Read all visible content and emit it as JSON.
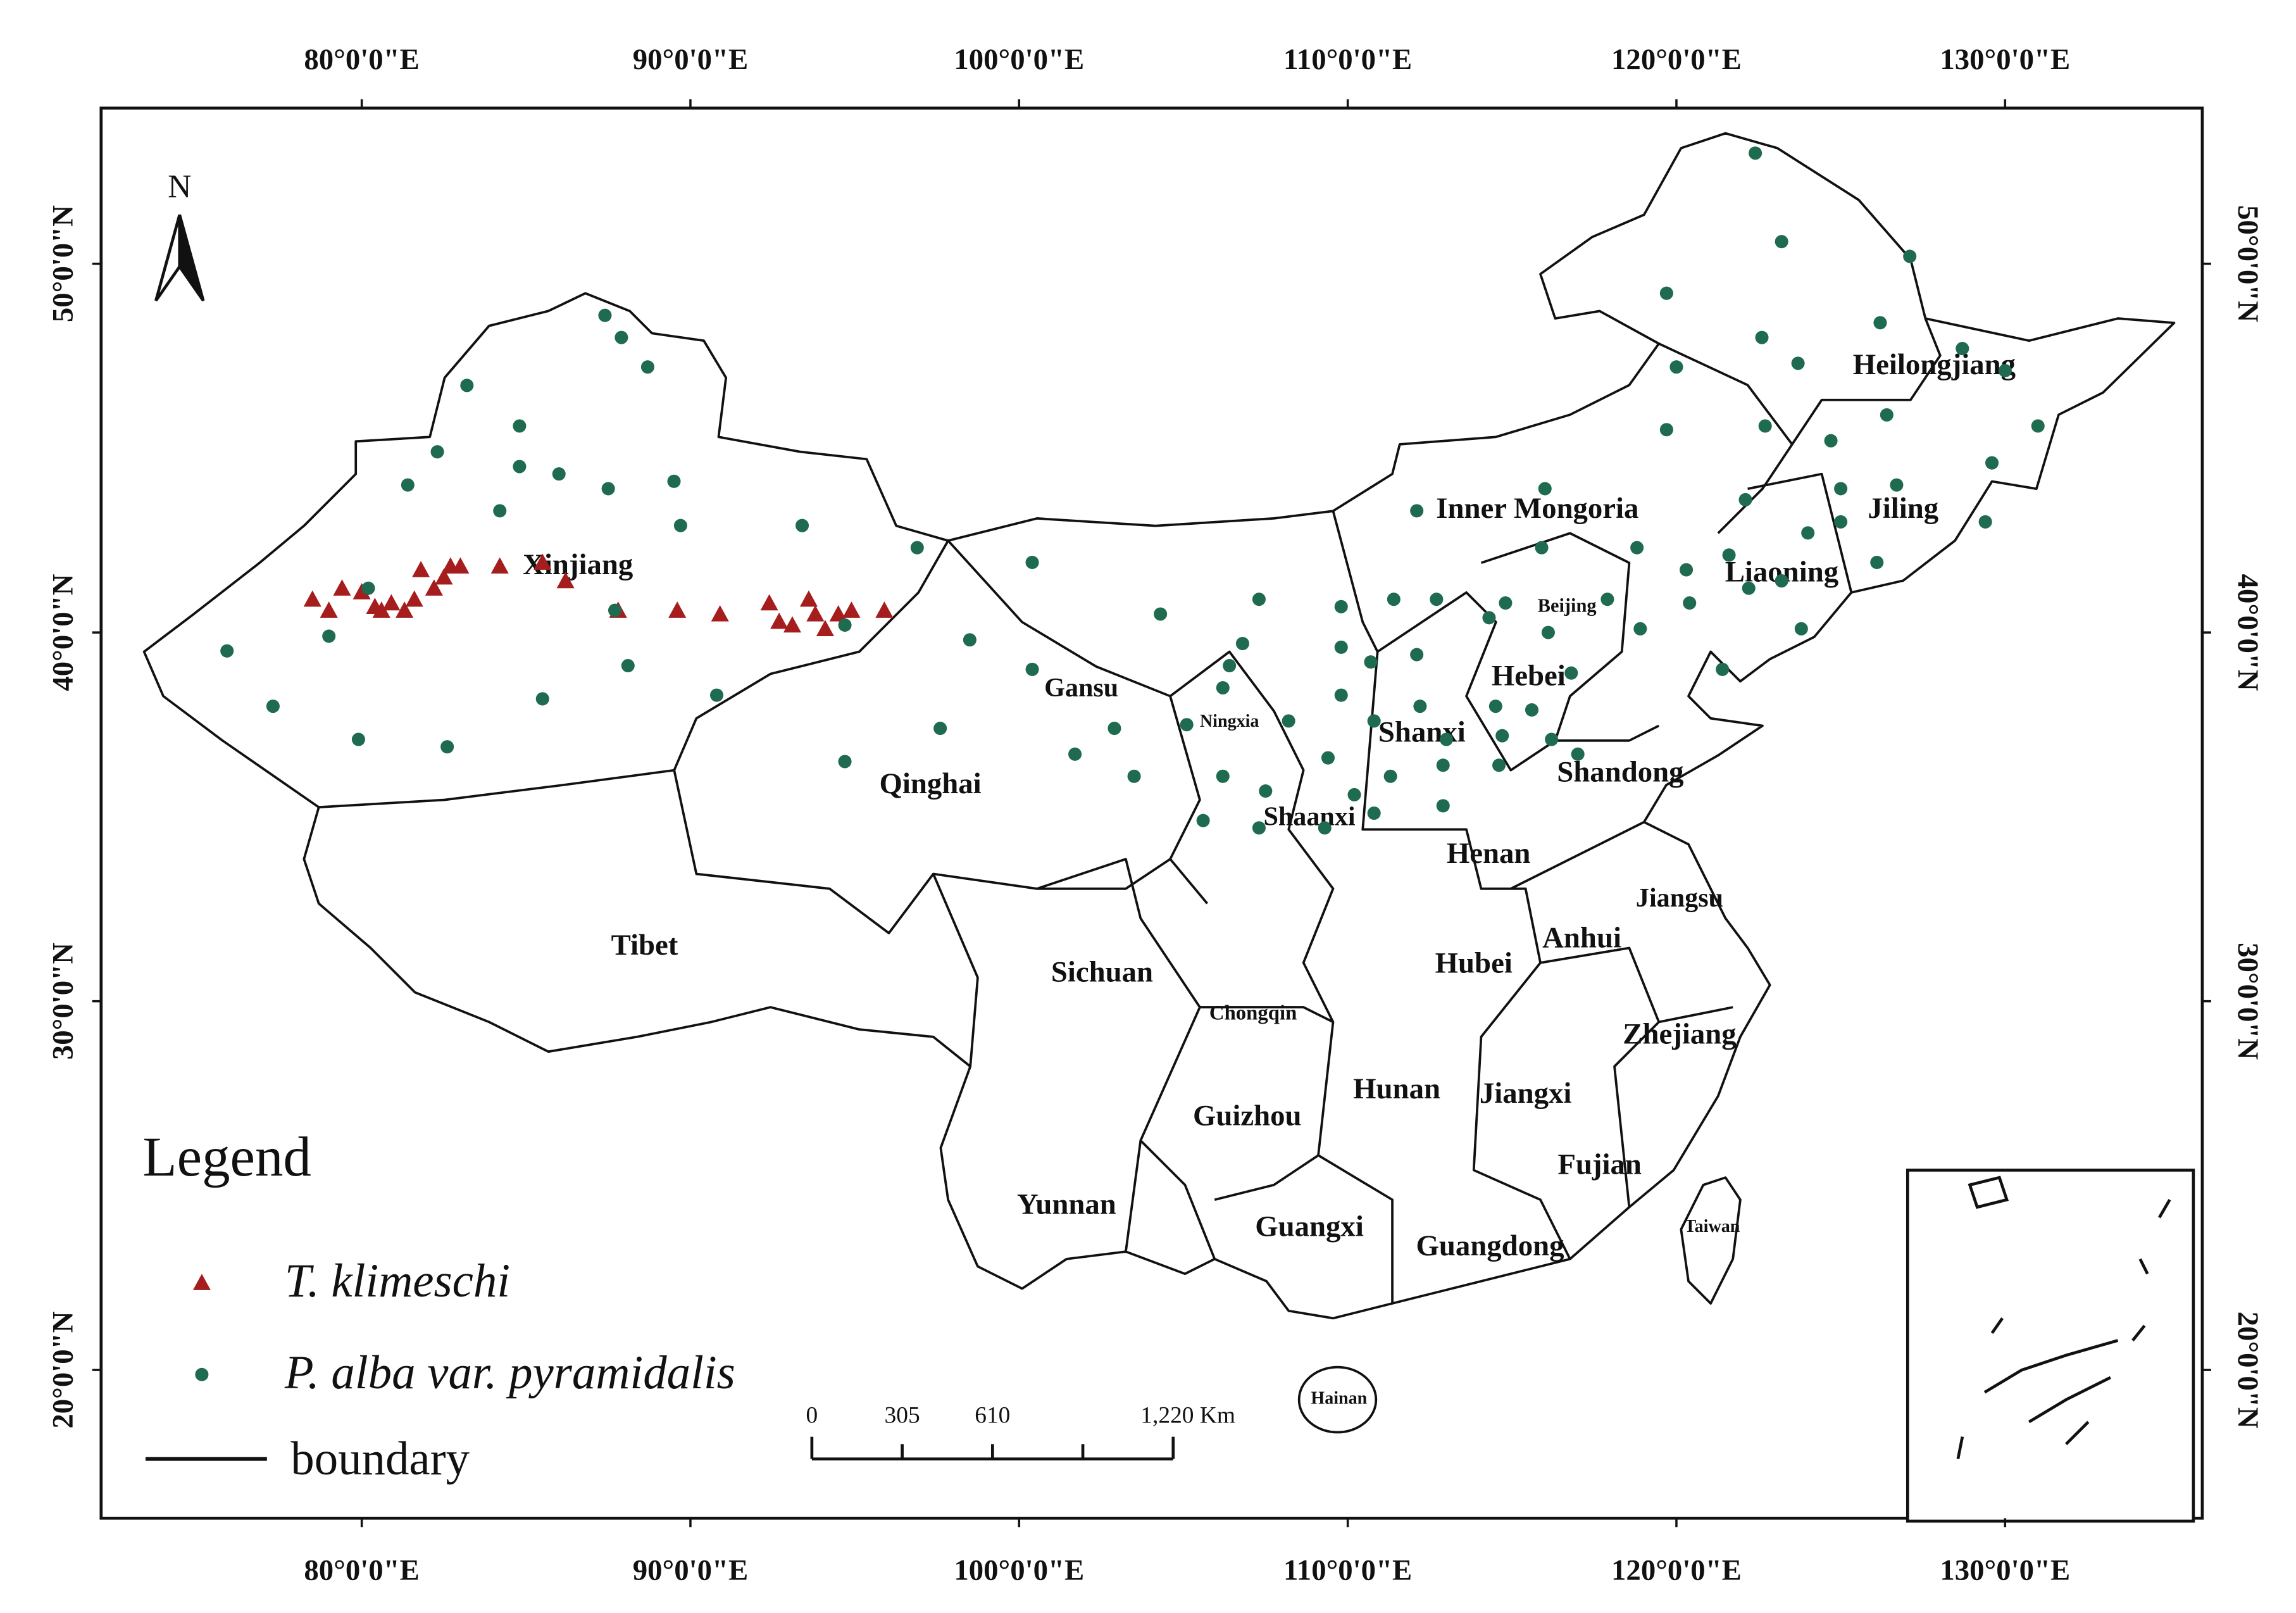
{
  "map": {
    "north": "N",
    "xlim": [
      72.07,
      136.0
    ],
    "ylim": [
      15.98,
      54.22
    ],
    "lon_ticks": [
      {
        "value": 80,
        "label": "80°0'0\"E"
      },
      {
        "value": 90,
        "label": "90°0'0\"E"
      },
      {
        "value": 100,
        "label": "100°0'0\"E"
      },
      {
        "value": 110,
        "label": "110°0'0\"E"
      },
      {
        "value": 120,
        "label": "120°0'0\"E"
      },
      {
        "value": 130,
        "label": "130°0'0\"E"
      }
    ],
    "lat_ticks": [
      {
        "value": 50,
        "label": "50°0'0\"N"
      },
      {
        "value": 40,
        "label": "40°0'0\"N"
      },
      {
        "value": 30,
        "label": "30°0'0\"N"
      },
      {
        "value": 20,
        "label": "20°0'0\"N"
      }
    ],
    "regions": [
      "Xinjiang",
      "Tibet",
      "Qinghai",
      "Gansu",
      "Ningxia",
      "Shaanxi",
      "Shanxi",
      "Inner Mongoria",
      "Heilongjiang",
      "Jiling",
      "Liaoning",
      "Beijing",
      "Hebei",
      "Shandong",
      "Henan",
      "Jiangsu",
      "Anhui",
      "Hubei",
      "Sichuan",
      "Chongqin",
      "Guizhou",
      "Hunan",
      "Jiangxi",
      "Zhejiang",
      "Fujian",
      "Yunnan",
      "Guangxi",
      "Guangdong",
      "Taiwan",
      "Hainan"
    ],
    "legend_title": "Legend",
    "boundary_label": "boundary",
    "scale_labels": [
      "0",
      "305",
      "610",
      "1,220 Km"
    ],
    "series": [
      {
        "name": "T. klimeschi",
        "color": "#a51d1d",
        "marker": "triangle",
        "lon": [
          78.5,
          79.0,
          79.4,
          80.0,
          80.4,
          80.6,
          80.9,
          81.3,
          81.6,
          81.8,
          82.2,
          82.5,
          82.7,
          83.0,
          84.2,
          85.5,
          86.2,
          87.8,
          89.6,
          90.9,
          92.4,
          92.7,
          93.1,
          93.6,
          93.8,
          94.1,
          94.5,
          94.9,
          95.9
        ],
        "lat": [
          40.9,
          40.6,
          41.2,
          41.1,
          40.7,
          40.6,
          40.8,
          40.6,
          40.9,
          41.7,
          41.2,
          41.5,
          41.8,
          41.8,
          41.8,
          41.9,
          41.4,
          40.6,
          40.6,
          40.5,
          40.8,
          40.3,
          40.2,
          40.9,
          40.5,
          40.1,
          40.5,
          40.6,
          40.6
        ]
      },
      {
        "name": "P. alba var. pyramidalis",
        "color": "#1e6b4f",
        "marker": "circle",
        "lon": [
          75.9,
          77.3,
          79.9,
          82.6,
          79.0,
          80.2,
          81.4,
          82.3,
          83.2,
          84.8,
          84.8,
          84.2,
          86.0,
          85.5,
          87.4,
          87.9,
          88.7,
          87.5,
          87.7,
          88.1,
          89.5,
          89.7,
          90.8,
          93.4,
          94.7,
          94.7,
          96.9,
          97.6,
          98.5,
          100.4,
          100.4,
          101.7,
          102.9,
          103.5,
          104.3,
          105.1,
          105.6,
          106.2,
          106.2,
          106.4,
          106.8,
          107.3,
          107.5,
          107.3,
          108.2,
          109.4,
          109.8,
          109.8,
          109.8,
          109.3,
          110.2,
          110.7,
          110.8,
          110.8,
          111.4,
          111.3,
          112.1,
          112.2,
          112.7,
          112.9,
          112.9,
          113.0,
          112.1,
          114.3,
          114.5,
          114.6,
          114.7,
          114.8,
          115.6,
          115.9,
          116.0,
          116.1,
          116.2,
          116.8,
          117.0,
          117.9,
          118.9,
          118.8,
          119.7,
          120.0,
          119.7,
          120.3,
          120.4,
          121.4,
          121.6,
          122.1,
          122.2,
          122.4,
          122.6,
          122.7,
          123.2,
          123.2,
          123.7,
          123.8,
          124.0,
          124.7,
          125.0,
          125.0,
          126.1,
          126.2,
          126.4,
          126.7,
          127.1,
          128.7,
          129.4,
          129.6,
          130.0,
          131.0
        ],
        "lat": [
          39.5,
          38.0,
          37.1,
          36.9,
          39.9,
          41.2,
          44.0,
          44.9,
          46.7,
          45.6,
          44.5,
          43.3,
          44.3,
          38.2,
          48.6,
          48.0,
          47.2,
          43.9,
          40.6,
          39.1,
          44.1,
          42.9,
          38.3,
          42.9,
          40.2,
          36.5,
          42.3,
          37.4,
          39.8,
          41.9,
          39.0,
          36.7,
          37.4,
          36.1,
          40.5,
          37.5,
          34.9,
          36.1,
          38.5,
          39.1,
          39.7,
          40.9,
          35.7,
          34.7,
          37.6,
          36.6,
          38.3,
          39.6,
          40.7,
          34.7,
          35.6,
          39.2,
          37.6,
          35.1,
          40.9,
          36.1,
          39.4,
          38.0,
          40.9,
          36.4,
          35.3,
          37.1,
          43.3,
          40.4,
          38.0,
          36.4,
          37.2,
          40.8,
          37.9,
          42.3,
          43.9,
          40.0,
          37.1,
          38.9,
          36.7,
          40.9,
          40.1,
          42.3,
          49.2,
          47.2,
          45.5,
          41.7,
          40.8,
          39.0,
          42.1,
          43.6,
          41.2,
          53.0,
          48.0,
          45.6,
          50.6,
          41.4,
          47.3,
          40.1,
          42.7,
          45.2,
          43.9,
          43.0,
          41.9,
          48.4,
          45.9,
          44.0,
          50.2,
          47.7,
          43.0,
          44.6,
          47.1,
          45.6
        ]
      }
    ]
  }
}
